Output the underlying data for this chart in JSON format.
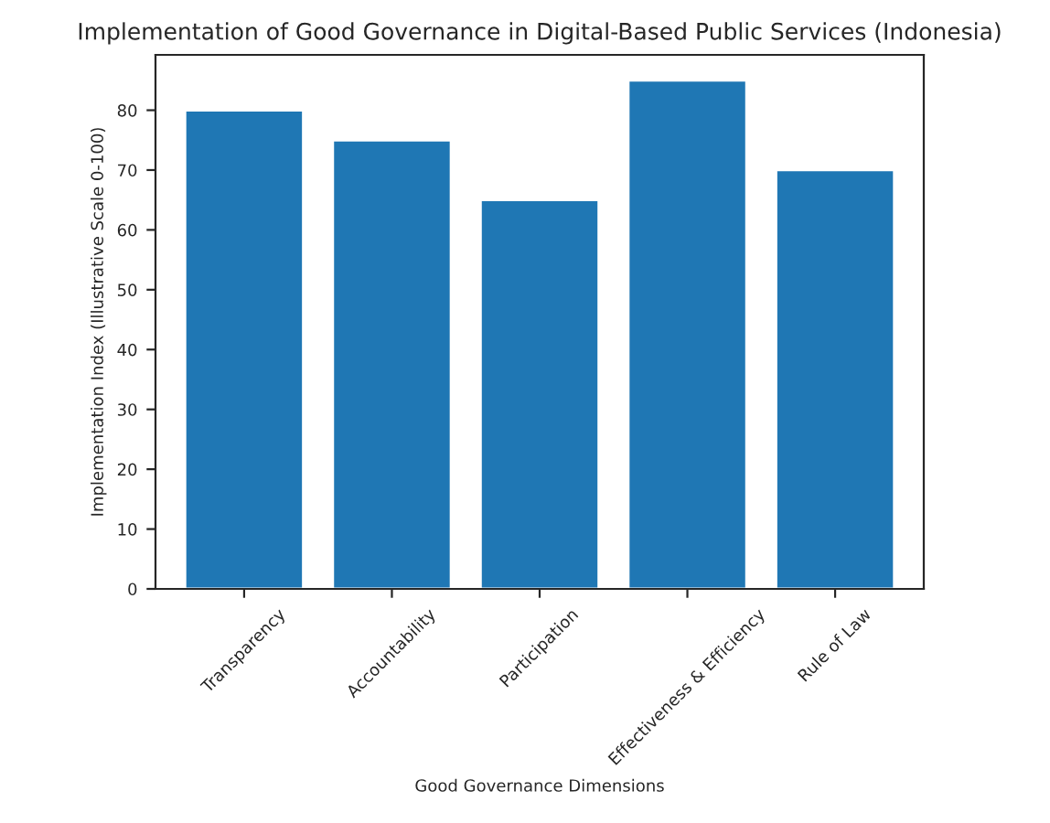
{
  "chart_data": {
    "type": "bar",
    "title": "Implementation of Good Governance in Digital-Based Public Services (Indonesia)",
    "xlabel": "Good Governance Dimensions",
    "ylabel": "Implementation Index (Illustrative Scale 0-100)",
    "categories": [
      "Transparency",
      "Accountability",
      "Participation",
      "Effectiveness & Efficiency",
      "Rule of Law"
    ],
    "values": [
      80,
      75,
      65,
      85,
      70
    ],
    "color": "#1f77b4",
    "ylim": [
      0,
      89.25
    ],
    "yticks": [
      0,
      10,
      20,
      30,
      40,
      50,
      60,
      70,
      80
    ],
    "grid": false,
    "legend": false
  }
}
